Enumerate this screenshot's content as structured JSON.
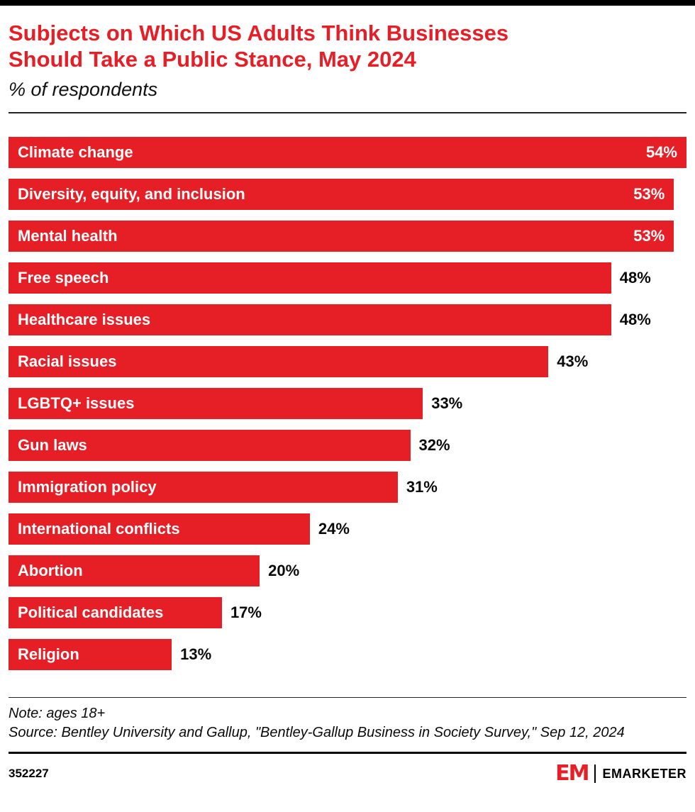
{
  "header": {
    "title_line1": "Subjects on Which US Adults Think Businesses",
    "title_line2": "Should Take a Public Stance, May 2024",
    "subtitle": "% of respondents"
  },
  "chart_data": {
    "type": "bar",
    "orientation": "horizontal",
    "title": "Subjects on Which US Adults Think Businesses Should Take a Public Stance, May 2024",
    "subtitle": "% of respondents",
    "categories": [
      "Climate change",
      "Diversity, equity, and inclusion",
      "Mental health",
      "Free speech",
      "Healthcare issues",
      "Racial issues",
      "LGBTQ+ issues",
      "Gun laws",
      "Immigration policy",
      "International conflicts",
      "Abortion",
      "Political candidates",
      "Religion"
    ],
    "values": [
      54,
      53,
      53,
      48,
      48,
      43,
      33,
      32,
      31,
      24,
      20,
      17,
      13
    ],
    "value_suffix": "%",
    "xlim": [
      0,
      54
    ],
    "grid": false,
    "legend": false,
    "bar_color": "#e61e26",
    "inside_label_threshold": 0.9
  },
  "footer": {
    "note": "Note: ages 18+",
    "source": "Source: Bentley University and Gallup, \"Bentley-Gallup Business in Society Survey,\" Sep 12, 2024",
    "chart_id": "352227",
    "logo_mark": "EM",
    "brand": "EMARKETER"
  },
  "colors": {
    "accent_red": "#e61e26",
    "text_black": "#0a0a0a",
    "background": "#ffffff"
  }
}
